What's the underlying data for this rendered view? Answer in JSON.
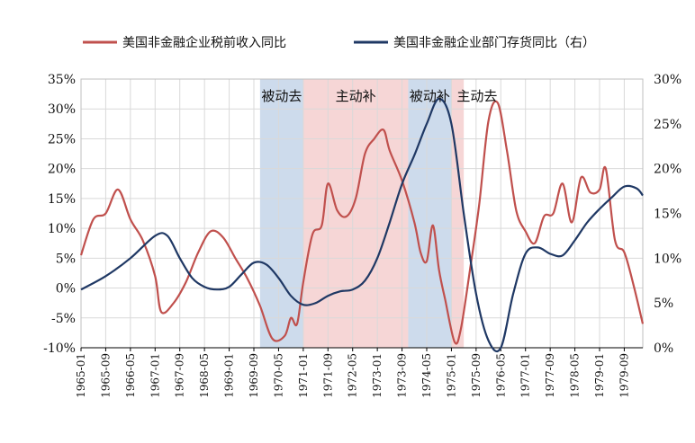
{
  "colors": {
    "series_left": "#c0504d",
    "series_right": "#1f3864",
    "shade_passive": "#b8cce4",
    "shade_active": "#f2c4c4",
    "grid": "#d9d9d9"
  },
  "chart_data": {
    "type": "line",
    "grid": true,
    "legend_position": "top",
    "y_left": {
      "ticks": [
        "35%",
        "30%",
        "25%",
        "20%",
        "15%",
        "10%",
        "5%",
        "0%",
        "-5%",
        "-10%"
      ],
      "range": [
        -10,
        35
      ]
    },
    "y_right": {
      "ticks": [
        "30%",
        "25%",
        "20%",
        "15%",
        "10%",
        "5%",
        "0%"
      ],
      "range": [
        0,
        30
      ]
    },
    "x_ticks": [
      "1965-01",
      "1965-09",
      "1966-05",
      "1967-01",
      "1967-09",
      "1968-05",
      "1969-01",
      "1969-09",
      "1970-05",
      "1971-01",
      "1971-09",
      "1972-05",
      "1973-01",
      "1973-09",
      "1974-05",
      "1975-01",
      "1975-09",
      "1976-05",
      "1977-01",
      "1977-09",
      "1978-05",
      "1979-01",
      "1979-09"
    ],
    "x_range": [
      "1965-01",
      "1980-03"
    ],
    "regions": [
      {
        "label": "被动去",
        "kind": "passive",
        "start": "1969-11",
        "end": "1971-01"
      },
      {
        "label": "主动补",
        "kind": "active",
        "start": "1971-01",
        "end": "1973-11"
      },
      {
        "label": "被动补",
        "kind": "passive",
        "start": "1973-11",
        "end": "1975-01"
      },
      {
        "label": "主动去",
        "kind": "active",
        "start": "1975-01",
        "end": "1975-05"
      }
    ],
    "series": [
      {
        "name": "美国非金融企业税前收入同比",
        "axis": "left",
        "points": [
          [
            "1965-01",
            5.5
          ],
          [
            "1965-05",
            11.5
          ],
          [
            "1965-09",
            12.5
          ],
          [
            "1966-01",
            16.5
          ],
          [
            "1966-05",
            11.5
          ],
          [
            "1966-09",
            8
          ],
          [
            "1967-01",
            2
          ],
          [
            "1967-03",
            -4
          ],
          [
            "1967-07",
            -2.5
          ],
          [
            "1967-11",
            1
          ],
          [
            "1968-03",
            6
          ],
          [
            "1968-07",
            9.5
          ],
          [
            "1968-11",
            8.5
          ],
          [
            "1969-03",
            5
          ],
          [
            "1969-07",
            1.5
          ],
          [
            "1969-11",
            -3
          ],
          [
            "1970-03",
            -8.5
          ],
          [
            "1970-07",
            -8
          ],
          [
            "1970-09",
            -5
          ],
          [
            "1970-11",
            -6
          ],
          [
            "1971-01",
            1
          ],
          [
            "1971-04",
            9
          ],
          [
            "1971-07",
            10.5
          ],
          [
            "1971-09",
            17.5
          ],
          [
            "1971-12",
            13
          ],
          [
            "1972-03",
            12
          ],
          [
            "1972-06",
            15
          ],
          [
            "1972-09",
            22.5
          ],
          [
            "1972-12",
            25
          ],
          [
            "1973-03",
            26.5
          ],
          [
            "1973-05",
            23
          ],
          [
            "1973-09",
            18
          ],
          [
            "1974-01",
            11
          ],
          [
            "1974-03",
            6
          ],
          [
            "1974-05",
            4.5
          ],
          [
            "1974-07",
            10.5
          ],
          [
            "1974-09",
            3
          ],
          [
            "1974-11",
            -2
          ],
          [
            "1975-02",
            -9
          ],
          [
            "1975-04",
            -7
          ],
          [
            "1975-07",
            3
          ],
          [
            "1975-10",
            14
          ],
          [
            "1976-01",
            28
          ],
          [
            "1976-04",
            31
          ],
          [
            "1976-07",
            23
          ],
          [
            "1976-10",
            13
          ],
          [
            "1977-01",
            9.5
          ],
          [
            "1977-04",
            7.5
          ],
          [
            "1977-07",
            12
          ],
          [
            "1977-10",
            12.5
          ],
          [
            "1978-01",
            17.5
          ],
          [
            "1978-04",
            11
          ],
          [
            "1978-07",
            18.5
          ],
          [
            "1978-10",
            16
          ],
          [
            "1979-01",
            16.5
          ],
          [
            "1979-03",
            20
          ],
          [
            "1979-06",
            8
          ],
          [
            "1979-09",
            6
          ],
          [
            "1979-12",
            0.5
          ],
          [
            "1980-03",
            -6
          ]
        ]
      },
      {
        "name": "美国非金融企业部门存货同比（右）",
        "axis": "right",
        "points": [
          [
            "1965-01",
            6.5
          ],
          [
            "1965-09",
            8
          ],
          [
            "1966-05",
            10
          ],
          [
            "1967-01",
            12.5
          ],
          [
            "1967-05",
            12.5
          ],
          [
            "1967-09",
            10
          ],
          [
            "1968-01",
            7.8
          ],
          [
            "1968-05",
            6.8
          ],
          [
            "1968-09",
            6.5
          ],
          [
            "1969-01",
            6.8
          ],
          [
            "1969-05",
            8.2
          ],
          [
            "1969-09",
            9.5
          ],
          [
            "1970-01",
            9.3
          ],
          [
            "1970-05",
            7.8
          ],
          [
            "1970-09",
            5.8
          ],
          [
            "1971-01",
            4.8
          ],
          [
            "1971-05",
            5
          ],
          [
            "1971-09",
            5.8
          ],
          [
            "1972-01",
            6.3
          ],
          [
            "1972-05",
            6.5
          ],
          [
            "1972-09",
            7.5
          ],
          [
            "1973-01",
            10
          ],
          [
            "1973-05",
            14
          ],
          [
            "1973-09",
            18.3
          ],
          [
            "1974-01",
            21.5
          ],
          [
            "1974-05",
            25
          ],
          [
            "1974-09",
            27.8
          ],
          [
            "1975-01",
            25
          ],
          [
            "1975-05",
            15
          ],
          [
            "1975-09",
            6
          ],
          [
            "1976-01",
            0.8
          ],
          [
            "1976-05",
            0
          ],
          [
            "1976-09",
            6
          ],
          [
            "1977-01",
            10.5
          ],
          [
            "1977-05",
            11.2
          ],
          [
            "1977-09",
            10.5
          ],
          [
            "1978-01",
            10.3
          ],
          [
            "1978-05",
            12
          ],
          [
            "1978-09",
            14
          ],
          [
            "1979-01",
            15.5
          ],
          [
            "1979-05",
            16.8
          ],
          [
            "1979-09",
            18
          ],
          [
            "1980-01",
            17.8
          ],
          [
            "1980-03",
            17
          ]
        ]
      }
    ]
  }
}
